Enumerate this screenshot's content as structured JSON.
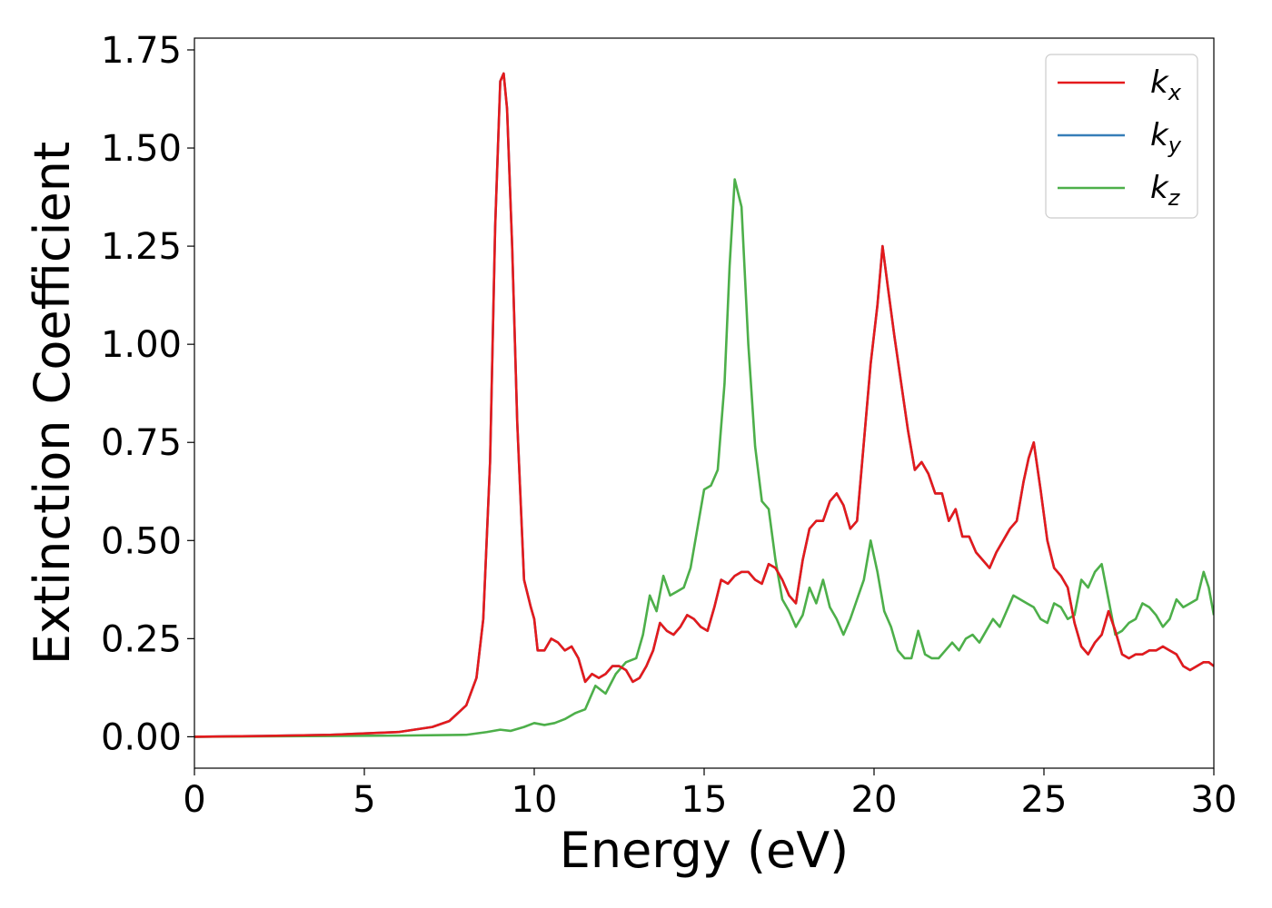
{
  "chart_data": {
    "type": "line",
    "title": "",
    "xlabel": "Energy (eV)",
    "ylabel": "Extinction Coefficient",
    "xlim": [
      0,
      30
    ],
    "ylim": [
      -0.08,
      1.78
    ],
    "xticks": [
      "0",
      "5",
      "10",
      "15",
      "20",
      "25",
      "30"
    ],
    "yticks": [
      "0.00",
      "0.25",
      "0.50",
      "0.75",
      "1.00",
      "1.25",
      "1.50",
      "1.75"
    ],
    "grid": false,
    "legend_position": "top-right",
    "colors": {
      "kx": "#e41a1c",
      "ky": "#377eb8",
      "kz": "#4daf4a"
    },
    "legend": [
      {
        "base": "k",
        "sub": "x",
        "color": "#e41a1c"
      },
      {
        "base": "k",
        "sub": "y",
        "color": "#377eb8"
      },
      {
        "base": "k",
        "sub": "z",
        "color": "#4daf4a"
      }
    ],
    "series": [
      {
        "id": "ky",
        "x": [
          0,
          2,
          4,
          6,
          7,
          7.5,
          8,
          8.3,
          8.5,
          8.7,
          8.85,
          9.0,
          9.1,
          9.2,
          9.35,
          9.5,
          9.7,
          9.9,
          10.0,
          10.1,
          10.3,
          10.5,
          10.7,
          10.9,
          11.1,
          11.3,
          11.5,
          11.7,
          11.9,
          12.1,
          12.3,
          12.5,
          12.7,
          12.9,
          13.1,
          13.3,
          13.5,
          13.7,
          13.9,
          14.1,
          14.3,
          14.5,
          14.7,
          14.9,
          15.1,
          15.3,
          15.5,
          15.7,
          15.9,
          16.1,
          16.3,
          16.5,
          16.7,
          16.9,
          17.1,
          17.3,
          17.5,
          17.7,
          17.9,
          18.1,
          18.3,
          18.5,
          18.7,
          18.9,
          19.1,
          19.3,
          19.5,
          19.7,
          19.9,
          20.1,
          20.25,
          20.4,
          20.6,
          20.8,
          21.0,
          21.2,
          21.4,
          21.6,
          21.8,
          22.0,
          22.2,
          22.4,
          22.6,
          22.8,
          23.0,
          23.2,
          23.4,
          23.6,
          23.8,
          24.0,
          24.2,
          24.4,
          24.55,
          24.7,
          24.9,
          25.1,
          25.3,
          25.5,
          25.7,
          25.9,
          26.1,
          26.3,
          26.5,
          26.7,
          26.9,
          27.1,
          27.3,
          27.5,
          27.7,
          27.9,
          28.1,
          28.3,
          28.5,
          28.7,
          28.9,
          29.1,
          29.3,
          29.5,
          29.7,
          29.85,
          30
        ],
        "y": [
          0.0,
          0.002,
          0.005,
          0.012,
          0.025,
          0.04,
          0.08,
          0.15,
          0.3,
          0.7,
          1.3,
          1.67,
          1.69,
          1.6,
          1.25,
          0.8,
          0.4,
          0.33,
          0.3,
          0.22,
          0.22,
          0.25,
          0.24,
          0.22,
          0.23,
          0.2,
          0.14,
          0.16,
          0.15,
          0.16,
          0.18,
          0.18,
          0.17,
          0.14,
          0.15,
          0.18,
          0.22,
          0.29,
          0.27,
          0.26,
          0.28,
          0.31,
          0.3,
          0.28,
          0.27,
          0.33,
          0.4,
          0.39,
          0.41,
          0.42,
          0.42,
          0.4,
          0.39,
          0.44,
          0.43,
          0.4,
          0.36,
          0.34,
          0.45,
          0.53,
          0.55,
          0.55,
          0.6,
          0.62,
          0.59,
          0.53,
          0.55,
          0.75,
          0.95,
          1.1,
          1.25,
          1.15,
          1.02,
          0.9,
          0.78,
          0.68,
          0.7,
          0.67,
          0.62,
          0.62,
          0.55,
          0.58,
          0.51,
          0.51,
          0.47,
          0.45,
          0.43,
          0.47,
          0.5,
          0.53,
          0.55,
          0.65,
          0.71,
          0.75,
          0.63,
          0.5,
          0.43,
          0.41,
          0.38,
          0.29,
          0.23,
          0.21,
          0.24,
          0.26,
          0.32,
          0.27,
          0.21,
          0.2,
          0.21,
          0.21,
          0.22,
          0.22,
          0.23,
          0.22,
          0.21,
          0.18,
          0.17,
          0.18,
          0.19,
          0.19,
          0.18
        ]
      },
      {
        "id": "kz",
        "x": [
          0,
          2,
          4,
          6,
          8,
          8.6,
          9.0,
          9.3,
          9.7,
          10.0,
          10.3,
          10.6,
          10.9,
          11.2,
          11.5,
          11.8,
          12.1,
          12.4,
          12.7,
          13.0,
          13.2,
          13.4,
          13.6,
          13.8,
          14.0,
          14.2,
          14.4,
          14.6,
          14.8,
          15.0,
          15.2,
          15.4,
          15.6,
          15.75,
          15.9,
          16.1,
          16.3,
          16.5,
          16.7,
          16.9,
          17.1,
          17.3,
          17.5,
          17.7,
          17.9,
          18.1,
          18.3,
          18.5,
          18.7,
          18.9,
          19.1,
          19.3,
          19.5,
          19.7,
          19.9,
          20.1,
          20.3,
          20.5,
          20.7,
          20.9,
          21.1,
          21.3,
          21.5,
          21.7,
          21.9,
          22.1,
          22.3,
          22.5,
          22.7,
          22.9,
          23.1,
          23.3,
          23.5,
          23.7,
          23.9,
          24.1,
          24.3,
          24.5,
          24.7,
          24.9,
          25.1,
          25.3,
          25.5,
          25.7,
          25.9,
          26.1,
          26.3,
          26.5,
          26.7,
          26.9,
          27.1,
          27.3,
          27.5,
          27.7,
          27.9,
          28.1,
          28.3,
          28.5,
          28.7,
          28.9,
          29.1,
          29.3,
          29.5,
          29.7,
          29.85,
          30
        ],
        "y": [
          0.0,
          0.001,
          0.002,
          0.003,
          0.005,
          0.012,
          0.018,
          0.015,
          0.025,
          0.035,
          0.03,
          0.035,
          0.045,
          0.06,
          0.07,
          0.13,
          0.11,
          0.16,
          0.19,
          0.2,
          0.26,
          0.36,
          0.32,
          0.41,
          0.36,
          0.37,
          0.38,
          0.43,
          0.53,
          0.63,
          0.64,
          0.68,
          0.9,
          1.2,
          1.42,
          1.35,
          1.0,
          0.74,
          0.6,
          0.58,
          0.45,
          0.35,
          0.32,
          0.28,
          0.31,
          0.38,
          0.34,
          0.4,
          0.33,
          0.3,
          0.26,
          0.3,
          0.35,
          0.4,
          0.5,
          0.42,
          0.32,
          0.28,
          0.22,
          0.2,
          0.2,
          0.27,
          0.21,
          0.2,
          0.2,
          0.22,
          0.24,
          0.22,
          0.25,
          0.26,
          0.24,
          0.27,
          0.3,
          0.28,
          0.32,
          0.36,
          0.35,
          0.34,
          0.33,
          0.3,
          0.29,
          0.34,
          0.33,
          0.3,
          0.31,
          0.4,
          0.38,
          0.42,
          0.44,
          0.35,
          0.26,
          0.27,
          0.29,
          0.3,
          0.34,
          0.33,
          0.31,
          0.28,
          0.3,
          0.35,
          0.33,
          0.34,
          0.35,
          0.42,
          0.38,
          0.31
        ]
      },
      {
        "id": "kx",
        "x": [
          0,
          2,
          4,
          6,
          7,
          7.5,
          8,
          8.3,
          8.5,
          8.7,
          8.85,
          9.0,
          9.1,
          9.2,
          9.35,
          9.5,
          9.7,
          9.9,
          10.0,
          10.1,
          10.3,
          10.5,
          10.7,
          10.9,
          11.1,
          11.3,
          11.5,
          11.7,
          11.9,
          12.1,
          12.3,
          12.5,
          12.7,
          12.9,
          13.1,
          13.3,
          13.5,
          13.7,
          13.9,
          14.1,
          14.3,
          14.5,
          14.7,
          14.9,
          15.1,
          15.3,
          15.5,
          15.7,
          15.9,
          16.1,
          16.3,
          16.5,
          16.7,
          16.9,
          17.1,
          17.3,
          17.5,
          17.7,
          17.9,
          18.1,
          18.3,
          18.5,
          18.7,
          18.9,
          19.1,
          19.3,
          19.5,
          19.7,
          19.9,
          20.1,
          20.25,
          20.4,
          20.6,
          20.8,
          21.0,
          21.2,
          21.4,
          21.6,
          21.8,
          22.0,
          22.2,
          22.4,
          22.6,
          22.8,
          23.0,
          23.2,
          23.4,
          23.6,
          23.8,
          24.0,
          24.2,
          24.4,
          24.55,
          24.7,
          24.9,
          25.1,
          25.3,
          25.5,
          25.7,
          25.9,
          26.1,
          26.3,
          26.5,
          26.7,
          26.9,
          27.1,
          27.3,
          27.5,
          27.7,
          27.9,
          28.1,
          28.3,
          28.5,
          28.7,
          28.9,
          29.1,
          29.3,
          29.5,
          29.7,
          29.85,
          30
        ],
        "y": [
          0.0,
          0.002,
          0.005,
          0.012,
          0.025,
          0.04,
          0.08,
          0.15,
          0.3,
          0.7,
          1.3,
          1.67,
          1.69,
          1.6,
          1.25,
          0.8,
          0.4,
          0.33,
          0.3,
          0.22,
          0.22,
          0.25,
          0.24,
          0.22,
          0.23,
          0.2,
          0.14,
          0.16,
          0.15,
          0.16,
          0.18,
          0.18,
          0.17,
          0.14,
          0.15,
          0.18,
          0.22,
          0.29,
          0.27,
          0.26,
          0.28,
          0.31,
          0.3,
          0.28,
          0.27,
          0.33,
          0.4,
          0.39,
          0.41,
          0.42,
          0.42,
          0.4,
          0.39,
          0.44,
          0.43,
          0.4,
          0.36,
          0.34,
          0.45,
          0.53,
          0.55,
          0.55,
          0.6,
          0.62,
          0.59,
          0.53,
          0.55,
          0.75,
          0.95,
          1.1,
          1.25,
          1.15,
          1.02,
          0.9,
          0.78,
          0.68,
          0.7,
          0.67,
          0.62,
          0.62,
          0.55,
          0.58,
          0.51,
          0.51,
          0.47,
          0.45,
          0.43,
          0.47,
          0.5,
          0.53,
          0.55,
          0.65,
          0.71,
          0.75,
          0.63,
          0.5,
          0.43,
          0.41,
          0.38,
          0.29,
          0.23,
          0.21,
          0.24,
          0.26,
          0.32,
          0.27,
          0.21,
          0.2,
          0.21,
          0.21,
          0.22,
          0.22,
          0.23,
          0.22,
          0.21,
          0.18,
          0.17,
          0.18,
          0.19,
          0.19,
          0.18
        ]
      }
    ]
  }
}
